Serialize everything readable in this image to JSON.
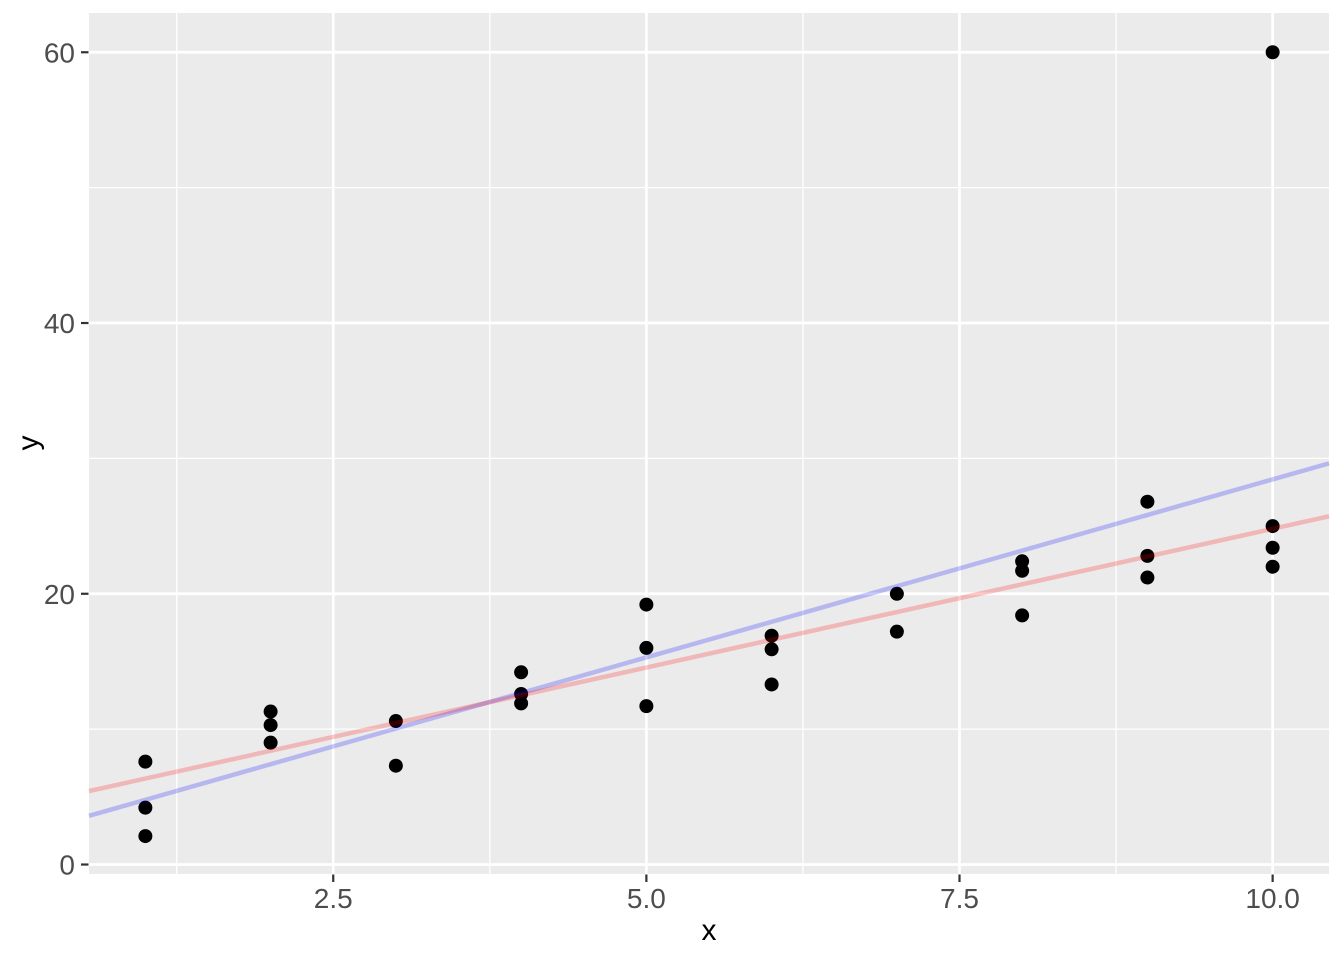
{
  "chart_data": {
    "type": "scatter",
    "title": "",
    "xlabel": "x",
    "ylabel": "y",
    "xlim": [
      0.55,
      10.45
    ],
    "ylim": [
      -0.7,
      62.9
    ],
    "grid": true,
    "legend": "none",
    "x_major_ticks": [
      2.5,
      5.0,
      7.5,
      10.0
    ],
    "x_tick_labels": [
      "2.5",
      "5.0",
      "7.5",
      "10.0"
    ],
    "x_minor_ticks": [
      1.25,
      3.75,
      6.25,
      8.75
    ],
    "y_major_ticks": [
      0,
      20,
      40,
      60
    ],
    "y_tick_labels": [
      "0",
      "20",
      "40",
      "60"
    ],
    "y_minor_ticks": [
      10,
      30,
      50
    ],
    "points": [
      [
        1,
        7.6
      ],
      [
        1,
        4.2
      ],
      [
        1,
        2.1
      ],
      [
        2,
        11.3
      ],
      [
        2,
        10.3
      ],
      [
        2,
        9.0
      ],
      [
        3,
        10.6
      ],
      [
        3,
        7.3
      ],
      [
        4,
        14.2
      ],
      [
        4,
        12.6
      ],
      [
        4,
        11.9
      ],
      [
        5,
        19.2
      ],
      [
        5,
        16.0
      ],
      [
        5,
        11.7
      ],
      [
        6,
        16.9
      ],
      [
        6,
        15.9
      ],
      [
        6,
        13.3
      ],
      [
        7,
        20.0
      ],
      [
        7,
        17.2
      ],
      [
        8,
        22.4
      ],
      [
        8,
        21.7
      ],
      [
        8,
        18.4
      ],
      [
        9,
        26.8
      ],
      [
        9,
        22.8
      ],
      [
        9,
        21.2
      ],
      [
        10,
        60.0
      ],
      [
        10,
        25.0
      ],
      [
        10,
        23.4
      ],
      [
        10,
        22.0
      ]
    ],
    "lines": [
      {
        "name": "blue-fit-line",
        "slope": 2.63,
        "intercept": 2.15,
        "color": "#0000ff",
        "opacity": 0.22
      },
      {
        "name": "red-fit-line",
        "slope": 2.05,
        "intercept": 4.3,
        "color": "#ff0000",
        "opacity": 0.22
      }
    ],
    "colors": {
      "panel_bg": "#ebebeb",
      "grid": "#ffffff",
      "point": "#000000",
      "tick_text": "#4d4d4d",
      "tick_mark": "#333333",
      "axis_title": "#000000"
    }
  }
}
